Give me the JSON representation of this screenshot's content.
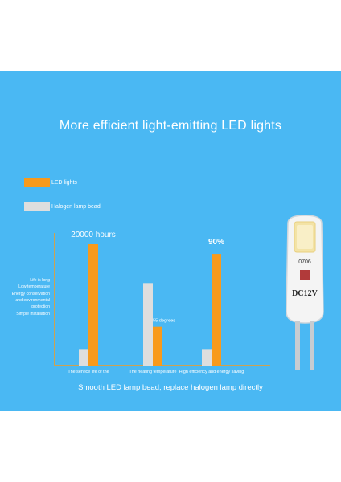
{
  "headline": "More efficient light-emitting LED lights",
  "footer": "Smooth LED lamp bead, replace halogen lamp directly",
  "legend": [
    {
      "label": "LED lights",
      "color": "#f89a1c"
    },
    {
      "label": "Halogen lamp bead",
      "color": "#dedede"
    }
  ],
  "y_labels": [
    "Life is long",
    "Low temperature",
    "Energy conservation",
    "and environmental",
    "protection",
    "Simple installation"
  ],
  "bulb_text": {
    "top": "0706",
    "side": "DC12V"
  },
  "chart_data": {
    "type": "bar",
    "title": "",
    "categories": [
      "The service life of the",
      "The heating temperature",
      "High efficiency and energy saving"
    ],
    "series": [
      {
        "name": "Halogen lamp bead",
        "color": "#dedede",
        "values": [
          13,
          68,
          13
        ]
      },
      {
        "name": "LED lights",
        "color": "#f89a1c",
        "values": [
          100,
          32,
          92
        ]
      }
    ],
    "annotations": [
      {
        "category": 0,
        "series": "LED lights",
        "text": "20000 hours"
      },
      {
        "category": 1,
        "series": "LED lights",
        "text": "55 degrees"
      },
      {
        "category": 2,
        "series": "LED lights",
        "text": "90%"
      }
    ],
    "ylim": [
      0,
      110
    ],
    "grid": false
  }
}
